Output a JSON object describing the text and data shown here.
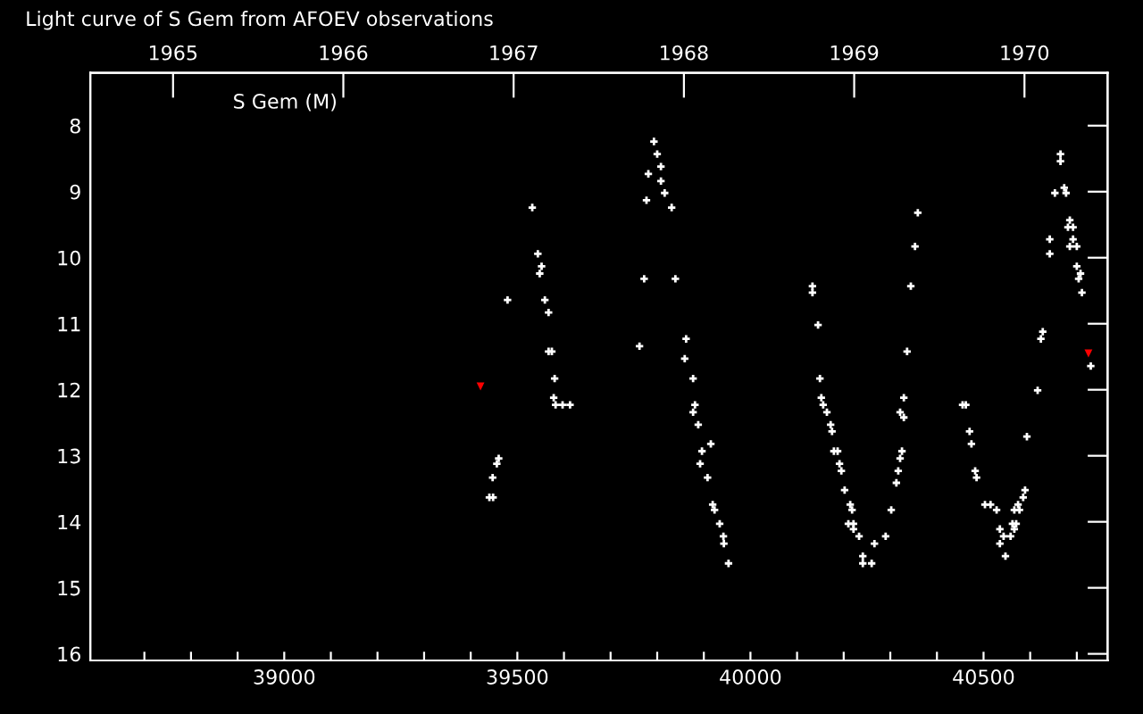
{
  "chart_data": {
    "type": "scatter",
    "title": "Light curve of S Gem from AFOEV observations",
    "annotations": [
      "S Gem (M)"
    ],
    "xlim": [
      38584,
      40766
    ],
    "ylim": [
      16.1,
      7.2
    ],
    "xticks": [
      {
        "value": 38700,
        "label": null
      },
      {
        "value": 38800,
        "label": null
      },
      {
        "value": 38900,
        "label": null
      },
      39000,
      {
        "value": 39100,
        "label": null
      },
      {
        "value": 39200,
        "label": null
      },
      {
        "value": 39300,
        "label": null
      },
      {
        "value": 39400,
        "label": null
      },
      39500,
      {
        "value": 39600,
        "label": null
      },
      {
        "value": 39700,
        "label": null
      },
      {
        "value": 39800,
        "label": null
      },
      {
        "value": 39900,
        "label": null
      },
      40000,
      {
        "value": 40100,
        "label": null
      },
      {
        "value": 40200,
        "label": null
      },
      {
        "value": 40300,
        "label": null
      },
      {
        "value": 40400,
        "label": null
      },
      40500,
      {
        "value": 40600,
        "label": null
      },
      {
        "value": 40700,
        "label": null
      }
    ],
    "x2lim": [
      1964.514,
      1970.488
    ],
    "x2ticks": [
      1965,
      1966,
      1967,
      1968,
      1969,
      1970
    ],
    "yticks": [
      8,
      9,
      10,
      11,
      12,
      13,
      14,
      15,
      16
    ],
    "grid": false,
    "legend": false,
    "series": [
      {
        "color": "#ffffff",
        "marker": "cross",
        "x": [
          39532,
          39544,
          39552,
          39548,
          39479,
          39559,
          39567,
          39567,
          39574,
          39580,
          39578,
          39582,
          39597,
          39613,
          39460,
          39456,
          39447,
          39440,
          39448,
          39793,
          39800,
          39808,
          39781,
          39808,
          39816,
          39777,
          39831,
          39772,
          39839,
          39762,
          39862,
          39859,
          39877,
          39881,
          39877,
          39888,
          39915,
          39896,
          39892,
          39908,
          39919,
          39923,
          39934,
          39942,
          39943,
          39953,
          40665,
          40665,
          40653,
          40673,
          40677,
          40685,
          40681,
          40692,
          40642,
          40692,
          40685,
          40700,
          40642,
          40700,
          40708,
          40704,
          40711,
          40359,
          40353,
          40344,
          40336,
          40329,
          40321,
          40329,
          40325,
          40321,
          40317,
          40313,
          40302,
          40290,
          40266,
          40260,
          40241,
          40241,
          40233,
          40133,
          40133,
          40145,
          40149,
          40152,
          40156,
          40164,
          40172,
          40175,
          40179,
          40187,
          40191,
          40195,
          40202,
          40214,
          40218,
          40210,
          40221,
          40221,
          40455,
          40462,
          40470,
          40474,
          40482,
          40485,
          40503,
          40515,
          40528,
          40535,
          40543,
          40535,
          40547,
          40558,
          40562,
          40570,
          40566,
          40566,
          40577,
          40574,
          40585,
          40589,
          40593,
          40616,
          40623,
          40627,
          40730
        ],
        "values": [
          9.24,
          9.94,
          10.13,
          10.24,
          10.64,
          10.64,
          10.83,
          11.42,
          11.42,
          11.83,
          12.12,
          12.23,
          12.23,
          12.23,
          13.04,
          13.12,
          13.33,
          13.63,
          13.63,
          8.24,
          8.43,
          8.62,
          8.73,
          8.84,
          9.02,
          9.13,
          9.24,
          10.32,
          10.32,
          11.34,
          11.23,
          11.53,
          11.83,
          12.23,
          12.34,
          12.53,
          12.82,
          12.93,
          13.12,
          13.33,
          13.74,
          13.82,
          14.03,
          14.22,
          14.33,
          14.63,
          8.43,
          8.54,
          9.02,
          8.94,
          9.02,
          9.43,
          9.54,
          9.54,
          9.72,
          9.72,
          9.83,
          9.83,
          9.94,
          10.13,
          10.24,
          10.32,
          10.53,
          9.32,
          9.83,
          10.43,
          11.42,
          12.12,
          12.34,
          12.42,
          12.93,
          13.04,
          13.23,
          13.41,
          13.82,
          14.22,
          14.33,
          14.63,
          14.52,
          14.63,
          14.22,
          10.43,
          10.53,
          11.02,
          11.83,
          12.12,
          12.23,
          12.34,
          12.53,
          12.63,
          12.93,
          12.93,
          13.12,
          13.23,
          13.52,
          13.74,
          13.82,
          14.03,
          14.03,
          14.11,
          12.23,
          12.23,
          12.63,
          12.82,
          13.23,
          13.33,
          13.74,
          13.74,
          13.82,
          14.11,
          14.22,
          14.33,
          14.52,
          14.22,
          14.03,
          14.03,
          14.11,
          13.82,
          13.82,
          13.74,
          13.63,
          13.52,
          12.71,
          12.01,
          11.23,
          11.12,
          11.64
        ]
      },
      {
        "color": "#ff0000",
        "marker": "triangle",
        "x": [
          39421,
          40725
        ],
        "values": [
          11.95,
          11.45
        ]
      }
    ]
  }
}
